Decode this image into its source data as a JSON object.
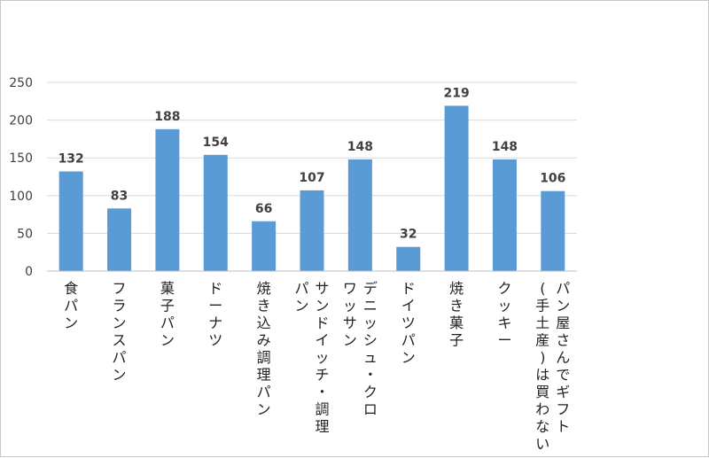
{
  "chart_data": {
    "type": "bar",
    "title": "",
    "xlabel": "",
    "ylabel": "",
    "categories": [
      "食パン",
      "フランスパン",
      "菓子パン",
      "ドーナツ",
      "焼き込み調理パン",
      "サンドイッチ・調理パン",
      "デニッシュ・クロワッサン",
      "ドイツパン",
      "焼き菓子",
      "クッキー",
      "パン屋さんでギフト(手土産)は買わない"
    ],
    "category_label_columns": [
      [
        "食パン"
      ],
      [
        "フランスパン"
      ],
      [
        "菓子パン"
      ],
      [
        "ドーナツ"
      ],
      [
        "焼き込み調理パン"
      ],
      [
        "サンドイッチ・調理",
        "パン"
      ],
      [
        "デニッシュ・クロ",
        "ワッサン"
      ],
      [
        "ドイツパン"
      ],
      [
        "焼き菓子"
      ],
      [
        "クッキー"
      ],
      [
        "パン屋さんでギフト",
        "(手土産)は買わない"
      ]
    ],
    "values": [
      132,
      83,
      188,
      154,
      66,
      107,
      148,
      32,
      219,
      148,
      106
    ],
    "ylim": [
      0,
      250
    ],
    "yticks": [
      0,
      50,
      100,
      150,
      200,
      250
    ],
    "grid": true,
    "legend": "none",
    "bar_color": "#5b9bd5",
    "grid_color": "#d9d9d9",
    "axis_color": "#bfbfbf"
  }
}
